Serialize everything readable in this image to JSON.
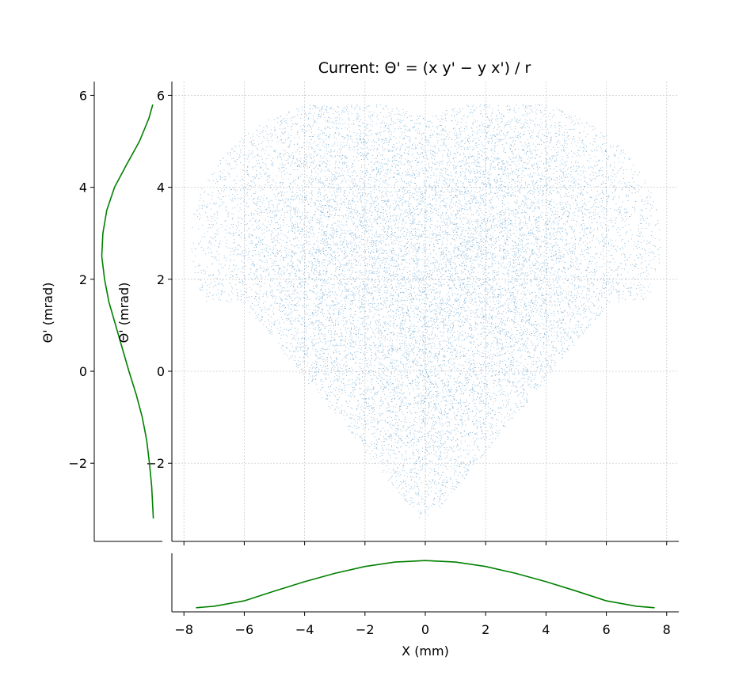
{
  "chart_data": [
    {
      "type": "scatter",
      "panel": "main",
      "title": "Current: Θ' = (x y' − y x') / r",
      "ylabel": "Θ' (mrad)",
      "xlim": [
        -8.4,
        8.4
      ],
      "ylim": [
        -3.7,
        6.3
      ],
      "x_ticks": [
        "−8",
        "−6",
        "−4",
        "−2",
        "0",
        "2",
        "4",
        "6",
        "8"
      ],
      "y_ticks": [
        "−2",
        "0",
        "2",
        "4",
        "6"
      ],
      "grid": true,
      "color": "#1f77b4",
      "distribution": {
        "shape": "heart-shaped cloud: two upper lobes, single lower tip",
        "x_range": [
          -7.6,
          7.6
        ],
        "y_range": [
          -3.2,
          5.8
        ],
        "upper_lobes_centers": [
          [
            -2.2,
            3.0
          ],
          [
            2.2,
            3.0
          ]
        ],
        "lower_tip": [
          0.0,
          -3.2
        ]
      }
    },
    {
      "type": "line",
      "panel": "left-marginal",
      "ylabel": "Θ' (mrad)",
      "ylim": [
        -3.7,
        6.3
      ],
      "y_ticks": [
        "−2",
        "0",
        "2",
        "4",
        "6"
      ],
      "color": "#008000",
      "points": [
        {
          "y": -3.2,
          "density": 0.02
        },
        {
          "y": -2.5,
          "density": 0.05
        },
        {
          "y": -2.0,
          "density": 0.09
        },
        {
          "y": -1.5,
          "density": 0.14
        },
        {
          "y": -1.0,
          "density": 0.22
        },
        {
          "y": -0.5,
          "density": 0.33
        },
        {
          "y": 0.0,
          "density": 0.46
        },
        {
          "y": 0.5,
          "density": 0.58
        },
        {
          "y": 1.0,
          "density": 0.7
        },
        {
          "y": 1.5,
          "density": 0.82
        },
        {
          "y": 2.0,
          "density": 0.9
        },
        {
          "y": 2.5,
          "density": 0.95
        },
        {
          "y": 3.0,
          "density": 0.93
        },
        {
          "y": 3.5,
          "density": 0.86
        },
        {
          "y": 4.0,
          "density": 0.72
        },
        {
          "y": 4.5,
          "density": 0.5
        },
        {
          "y": 5.0,
          "density": 0.27
        },
        {
          "y": 5.5,
          "density": 0.1
        },
        {
          "y": 5.8,
          "density": 0.03
        }
      ]
    },
    {
      "type": "line",
      "panel": "bottom-marginal",
      "xlabel": "X (mm)",
      "xlim": [
        -8.4,
        8.4
      ],
      "x_ticks": [
        "−8",
        "−6",
        "−4",
        "−2",
        "0",
        "2",
        "4",
        "6",
        "8"
      ],
      "color": "#008000",
      "points": [
        {
          "x": -7.6,
          "density": 0.02
        },
        {
          "x": -7.0,
          "density": 0.05
        },
        {
          "x": -6.0,
          "density": 0.16
        },
        {
          "x": -5.0,
          "density": 0.36
        },
        {
          "x": -4.0,
          "density": 0.55
        },
        {
          "x": -3.0,
          "density": 0.72
        },
        {
          "x": -2.0,
          "density": 0.86
        },
        {
          "x": -1.0,
          "density": 0.95
        },
        {
          "x": 0.0,
          "density": 0.98
        },
        {
          "x": 1.0,
          "density": 0.95
        },
        {
          "x": 2.0,
          "density": 0.86
        },
        {
          "x": 3.0,
          "density": 0.72
        },
        {
          "x": 4.0,
          "density": 0.55
        },
        {
          "x": 5.0,
          "density": 0.36
        },
        {
          "x": 6.0,
          "density": 0.16
        },
        {
          "x": 7.0,
          "density": 0.05
        },
        {
          "x": 7.6,
          "density": 0.02
        }
      ]
    }
  ]
}
